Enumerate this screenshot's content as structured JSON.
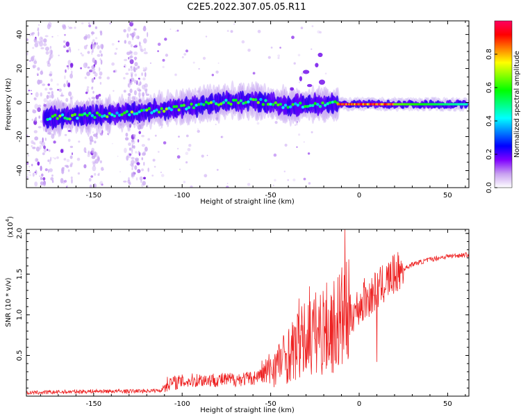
{
  "figure_title": "C2E5.2022.307.05.05.R11",
  "chart_data": [
    {
      "type": "heatmap",
      "xlabel": "Height of straight line (km)",
      "ylabel": "Frequency (Hz)",
      "xlim": [
        -188,
        62
      ],
      "ylim": [
        -50,
        48
      ],
      "xticks": [
        -150,
        -100,
        -50,
        0,
        50
      ],
      "yticks": [
        -40,
        -20,
        0,
        20,
        40
      ],
      "colorbar": {
        "label": "Normalized spectral amplitude",
        "range": [
          0,
          1
        ],
        "ticks": [
          "0.0",
          "0.2",
          "0.4",
          "0.6",
          "0.8"
        ],
        "colors": [
          "#ffffff",
          "#c8a0f0",
          "#8000ff",
          "#0000ff",
          "#0080ff",
          "#00ffff",
          "#00ff80",
          "#00ff00",
          "#80ff00",
          "#ffff00",
          "#ff8000",
          "#ff0000",
          "#ff0060"
        ]
      },
      "signal_track": [
        {
          "x": -176,
          "y": -9
        },
        {
          "x": -160,
          "y": -8
        },
        {
          "x": -140,
          "y": -7
        },
        {
          "x": -120,
          "y": -5
        },
        {
          "x": -100,
          "y": -3
        },
        {
          "x": -80,
          "y": 0
        },
        {
          "x": -60,
          "y": 1
        },
        {
          "x": -40,
          "y": -2
        },
        {
          "x": -20,
          "y": -1
        },
        {
          "x": -10,
          "y": -1
        },
        {
          "x": 0,
          "y": -1
        },
        {
          "x": 20,
          "y": -1
        },
        {
          "x": 40,
          "y": -1
        },
        {
          "x": 61,
          "y": -1
        }
      ]
    },
    {
      "type": "line",
      "xlabel": "Height of straight line (km)",
      "ylabel": "SNR (10 * v/v)",
      "y_multiplier": "(x10",
      "y_multiplier_exp": "4",
      "y_multiplier_close": ")",
      "xlim": [
        -188,
        62
      ],
      "ylim": [
        0,
        2.05
      ],
      "xticks": [
        -150,
        -100,
        -50,
        0,
        50
      ],
      "yticks": [
        "0.5",
        "1.0",
        "1.5",
        "2.0"
      ],
      "ytick_values": [
        0.5,
        1.0,
        1.5,
        2.0
      ],
      "line_color": "#ee2222",
      "envelope": [
        {
          "x": -188,
          "y": 0.03
        },
        {
          "x": -170,
          "y": 0.04
        },
        {
          "x": -150,
          "y": 0.05
        },
        {
          "x": -130,
          "y": 0.05
        },
        {
          "x": -112,
          "y": 0.06
        },
        {
          "x": -108,
          "y": 0.16
        },
        {
          "x": -90,
          "y": 0.2
        },
        {
          "x": -75,
          "y": 0.2
        },
        {
          "x": -60,
          "y": 0.22
        },
        {
          "x": -52,
          "y": 0.3
        },
        {
          "x": -45,
          "y": 0.42
        },
        {
          "x": -38,
          "y": 0.55
        },
        {
          "x": -30,
          "y": 0.7
        },
        {
          "x": -22,
          "y": 0.8
        },
        {
          "x": -15,
          "y": 0.85
        },
        {
          "x": -10,
          "y": 0.95
        },
        {
          "x": -5,
          "y": 1.0
        },
        {
          "x": 0,
          "y": 1.1
        },
        {
          "x": 5,
          "y": 1.2
        },
        {
          "x": 10,
          "y": 1.3
        },
        {
          "x": 15,
          "y": 1.4
        },
        {
          "x": 20,
          "y": 1.5
        },
        {
          "x": 30,
          "y": 1.62
        },
        {
          "x": 40,
          "y": 1.68
        },
        {
          "x": 50,
          "y": 1.72
        },
        {
          "x": 62,
          "y": 1.74
        }
      ],
      "peaks": [
        {
          "x": -8,
          "y": 2.05
        },
        {
          "x": 10,
          "y": 1.78
        },
        {
          "x": -34,
          "y": 1.2
        },
        {
          "x": -28,
          "y": 1.35
        },
        {
          "x": -20,
          "y": 1.15
        },
        {
          "x": 3,
          "y": 1.45
        },
        {
          "x": -14,
          "y": 1.05
        },
        {
          "x": 10,
          "y": 0.42
        }
      ]
    }
  ]
}
